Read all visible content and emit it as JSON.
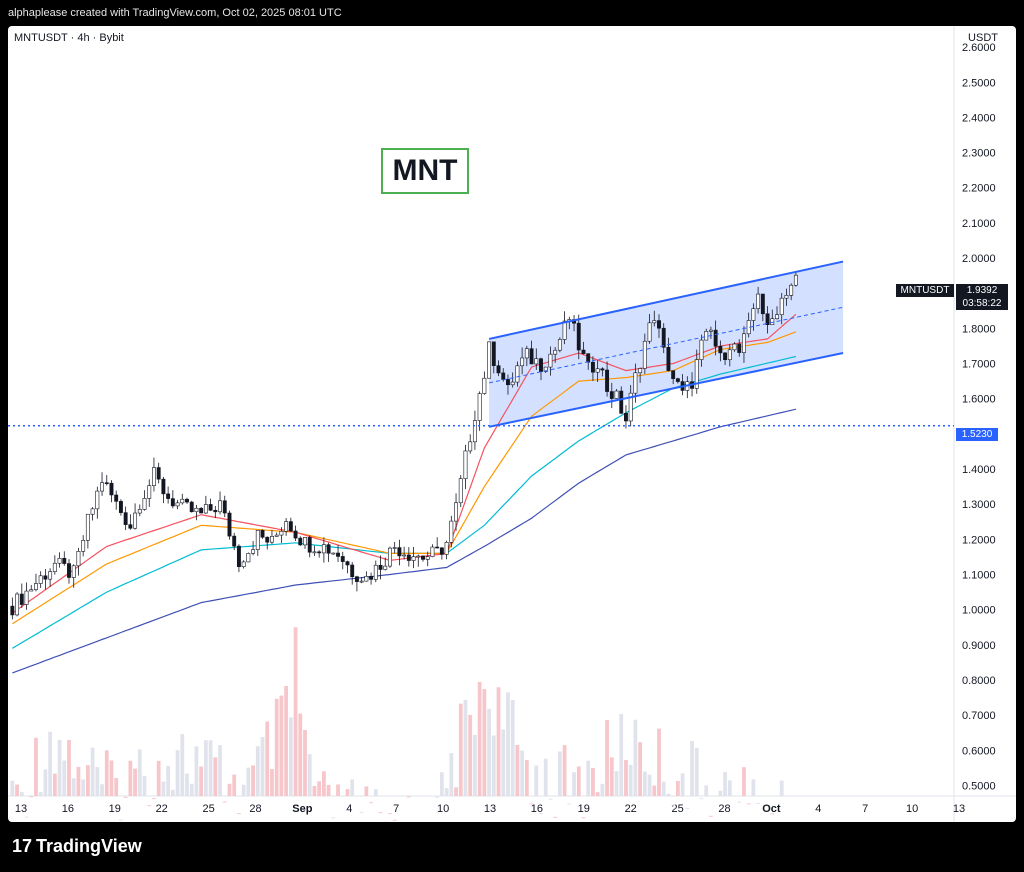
{
  "header": {
    "attribution": "alphaplease created with TradingView.com, Oct 02, 2025 08:01 UTC"
  },
  "chart_header": {
    "symbol_line": "MNTUSDT · 4h · Bybit",
    "currency": "USDT"
  },
  "annotation": {
    "label": "MNT"
  },
  "price_labels": {
    "symbol": "MNTUSDT",
    "last_price": "1.9392",
    "countdown": "03:58:22",
    "support": "1.5230"
  },
  "footer": {
    "logo_text": "TradingView",
    "logo_mark": "17"
  },
  "colors": {
    "up": "#131722",
    "down": "#131722",
    "channel": "#2962ff",
    "channel_fill": "#2962ff33",
    "ema_red": "#f7525f",
    "ema_orange": "#ff9800",
    "ema_cyan": "#00bcd4",
    "ema_blue": "#3f51b5",
    "support_line": "#2962ff"
  },
  "chart_data": {
    "type": "candlestick",
    "timeframe": "4h",
    "ylim": [
      0.47,
      2.66
    ],
    "y_ticks": [
      "2.6000",
      "2.5000",
      "2.4000",
      "2.3000",
      "2.2000",
      "2.1000",
      "2.0000",
      "1.9000",
      "1.8000",
      "1.7000",
      "1.6000",
      "1.5000",
      "1.4000",
      "1.3000",
      "1.2000",
      "1.1000",
      "1.0000",
      "0.9000",
      "0.8000",
      "0.7000",
      "0.6000",
      "0.5000"
    ],
    "x_ticks": [
      "13",
      "16",
      "19",
      "22",
      "25",
      "28",
      "Sep",
      "4",
      "7",
      "10",
      "13",
      "16",
      "19",
      "22",
      "25",
      "28",
      "Oct",
      "4",
      "7",
      "10",
      "13"
    ],
    "price_path": [
      [
        0,
        1.01
      ],
      [
        6,
        1.09
      ],
      [
        9,
        1.13
      ],
      [
        13,
        1.1
      ],
      [
        16,
        1.25
      ],
      [
        19,
        1.37
      ],
      [
        22,
        1.3
      ],
      [
        25,
        1.24
      ],
      [
        27,
        1.31
      ],
      [
        30,
        1.38
      ],
      [
        33,
        1.32
      ],
      [
        36,
        1.29
      ],
      [
        40,
        1.27
      ],
      [
        44,
        1.3
      ],
      [
        46,
        1.22
      ],
      [
        48,
        1.14
      ],
      [
        50,
        1.17
      ],
      [
        52,
        1.21
      ],
      [
        55,
        1.19
      ],
      [
        58,
        1.26
      ],
      [
        60,
        1.22
      ],
      [
        62,
        1.19
      ],
      [
        66,
        1.18
      ],
      [
        69,
        1.16
      ],
      [
        72,
        1.11
      ],
      [
        75,
        1.09
      ],
      [
        78,
        1.13
      ],
      [
        81,
        1.18
      ],
      [
        84,
        1.16
      ],
      [
        87,
        1.15
      ],
      [
        90,
        1.16
      ],
      [
        92,
        1.19
      ],
      [
        94,
        1.29
      ],
      [
        96,
        1.43
      ],
      [
        98,
        1.56
      ],
      [
        100,
        1.67
      ],
      [
        101,
        1.74
      ],
      [
        103,
        1.69
      ],
      [
        105,
        1.62
      ],
      [
        107,
        1.69
      ],
      [
        109,
        1.72
      ],
      [
        112,
        1.7
      ],
      [
        115,
        1.74
      ],
      [
        118,
        1.83
      ],
      [
        120,
        1.75
      ],
      [
        122,
        1.68
      ],
      [
        124,
        1.71
      ],
      [
        126,
        1.63
      ],
      [
        128,
        1.6
      ],
      [
        130,
        1.54
      ],
      [
        132,
        1.66
      ],
      [
        134,
        1.76
      ],
      [
        136,
        1.84
      ],
      [
        138,
        1.73
      ],
      [
        140,
        1.66
      ],
      [
        142,
        1.61
      ],
      [
        144,
        1.65
      ],
      [
        146,
        1.75
      ],
      [
        148,
        1.79
      ],
      [
        150,
        1.71
      ],
      [
        152,
        1.76
      ],
      [
        154,
        1.73
      ],
      [
        156,
        1.8
      ],
      [
        158,
        1.91
      ],
      [
        160,
        1.79
      ],
      [
        162,
        1.86
      ],
      [
        164,
        1.91
      ],
      [
        166,
        1.94
      ]
    ],
    "ema_red_path": [
      [
        0,
        0.99
      ],
      [
        20,
        1.18
      ],
      [
        40,
        1.27
      ],
      [
        60,
        1.22
      ],
      [
        80,
        1.14
      ],
      [
        92,
        1.16
      ],
      [
        100,
        1.46
      ],
      [
        110,
        1.69
      ],
      [
        120,
        1.73
      ],
      [
        130,
        1.68
      ],
      [
        140,
        1.7
      ],
      [
        150,
        1.75
      ],
      [
        160,
        1.77
      ],
      [
        166,
        1.84
      ]
    ],
    "ema_orange_path": [
      [
        0,
        0.96
      ],
      [
        20,
        1.13
      ],
      [
        40,
        1.24
      ],
      [
        60,
        1.22
      ],
      [
        80,
        1.16
      ],
      [
        92,
        1.16
      ],
      [
        100,
        1.35
      ],
      [
        110,
        1.55
      ],
      [
        120,
        1.65
      ],
      [
        130,
        1.66
      ],
      [
        140,
        1.68
      ],
      [
        150,
        1.74
      ],
      [
        160,
        1.76
      ],
      [
        166,
        1.79
      ]
    ],
    "ema_cyan_path": [
      [
        0,
        0.89
      ],
      [
        20,
        1.05
      ],
      [
        40,
        1.17
      ],
      [
        60,
        1.19
      ],
      [
        80,
        1.16
      ],
      [
        92,
        1.16
      ],
      [
        100,
        1.24
      ],
      [
        110,
        1.38
      ],
      [
        120,
        1.48
      ],
      [
        130,
        1.56
      ],
      [
        140,
        1.63
      ],
      [
        150,
        1.67
      ],
      [
        166,
        1.72
      ]
    ],
    "ema_blue_path": [
      [
        0,
        0.82
      ],
      [
        20,
        0.92
      ],
      [
        40,
        1.02
      ],
      [
        60,
        1.07
      ],
      [
        80,
        1.1
      ],
      [
        92,
        1.12
      ],
      [
        100,
        1.18
      ],
      [
        110,
        1.26
      ],
      [
        120,
        1.36
      ],
      [
        130,
        1.44
      ],
      [
        140,
        1.48
      ],
      [
        150,
        1.52
      ],
      [
        166,
        1.57
      ]
    ],
    "channel": {
      "upper": [
        [
          101,
          1.77
        ],
        [
          176,
          1.99
        ]
      ],
      "lower": [
        [
          101,
          1.52
        ],
        [
          176,
          1.73
        ]
      ],
      "mid": [
        [
          101,
          1.645
        ],
        [
          176,
          1.86
        ]
      ]
    },
    "support_level": 1.523,
    "bars_total": 200,
    "volume_profile": [
      [
        0,
        0.55
      ],
      [
        8,
        0.75
      ],
      [
        20,
        0.6
      ],
      [
        35,
        0.7
      ],
      [
        50,
        0.6
      ],
      [
        60,
        0.85
      ],
      [
        65,
        0.55
      ],
      [
        80,
        0.5
      ],
      [
        90,
        0.5
      ],
      [
        95,
        0.75
      ],
      [
        100,
        0.9
      ],
      [
        110,
        0.65
      ],
      [
        120,
        0.6
      ],
      [
        130,
        0.75
      ],
      [
        140,
        0.65
      ],
      [
        150,
        0.6
      ],
      [
        166,
        0.5
      ]
    ]
  }
}
